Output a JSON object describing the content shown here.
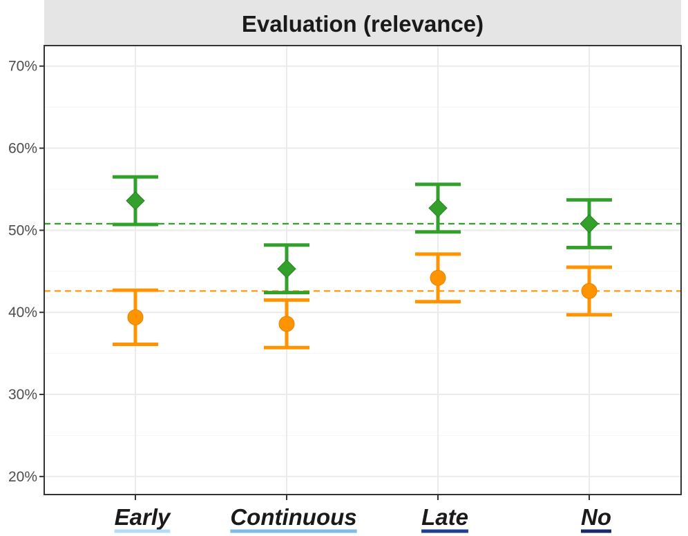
{
  "chart_data": {
    "type": "scatter",
    "title": "Evaluation (relevance)",
    "categories": [
      "Early",
      "Continuous",
      "Late",
      "No"
    ],
    "category_underline_colors": [
      "#b3dcf5",
      "#7fbde8",
      "#1f3f8f",
      "#1a2a6c"
    ],
    "yticks": [
      "20%",
      "30%",
      "40%",
      "50%",
      "60%",
      "70%"
    ],
    "ytick_values": [
      20,
      30,
      40,
      50,
      60,
      70
    ],
    "ylim": [
      17.8,
      72.5
    ],
    "grid": true,
    "series": [
      {
        "color": "#33a02c",
        "marker": "diamond",
        "values": [
          53.6,
          45.3,
          52.7,
          50.8
        ],
        "lower": [
          50.7,
          42.4,
          49.8,
          47.9
        ],
        "upper": [
          56.5,
          48.2,
          55.6,
          53.7
        ],
        "reference_line": 50.8
      },
      {
        "color": "#ff9400",
        "marker": "circle",
        "values": [
          39.4,
          38.6,
          44.2,
          42.6
        ],
        "lower": [
          36.1,
          35.7,
          41.3,
          39.7
        ],
        "upper": [
          42.7,
          41.5,
          47.1,
          45.5
        ],
        "reference_line": 42.6
      }
    ]
  }
}
